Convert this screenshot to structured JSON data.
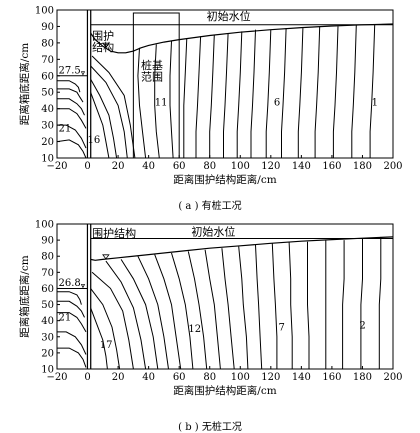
{
  "chart_data": [
    {
      "type": "line",
      "xlabel": "距离围护结构距离/cm",
      "ylabel": "距离箱底距离/cm",
      "xlim": [
        -20,
        200
      ],
      "ylim": [
        10,
        100
      ],
      "xticks": [
        "−20",
        "0",
        "20",
        "40",
        "60",
        "80",
        "100",
        "120",
        "140",
        "160",
        "180",
        "200"
      ],
      "yticks": [
        "10",
        "20",
        "30",
        "40",
        "50",
        "60",
        "70",
        "80",
        "90",
        "100"
      ],
      "grid": false,
      "caption": "( a ) 有桩工况",
      "annotations": {
        "initial_water_level": "初始水位",
        "retaining_structure": [
          "围护",
          "结构"
        ],
        "pile_zone": [
          "桩基",
          "范围"
        ],
        "inside_level": "27.5",
        "contour_21": "21",
        "contour_16": "16",
        "contour_11": "11",
        "contour_6": "6",
        "contour_1": "1"
      },
      "wall_x": [
        0,
        2
      ],
      "pile_zone_x": [
        30,
        60
      ],
      "initial_water_level_y": 91,
      "phreatic_line": {
        "x": [
          2,
          5,
          10,
          15,
          20,
          25,
          30,
          35,
          40,
          50,
          60,
          80,
          100,
          120,
          140,
          160,
          180,
          200
        ],
        "y": [
          86,
          82,
          78,
          75,
          74,
          74,
          75,
          77,
          78.5,
          80.5,
          82,
          84.5,
          86.5,
          88,
          89.3,
          90.3,
          91,
          91.5
        ]
      },
      "contours": [
        {
          "x": [
            -20,
            -12,
            -8,
            -6,
            -5
          ],
          "y": [
            57,
            57,
            55,
            53,
            50
          ]
        },
        {
          "x": [
            -20,
            -12,
            -7,
            -5,
            -3
          ],
          "y": [
            52,
            52,
            50,
            47,
            44
          ]
        },
        {
          "x": [
            -20,
            -12,
            -7,
            -4,
            -2
          ],
          "y": [
            46,
            46,
            43,
            40,
            36
          ]
        },
        {
          "x": [
            -20,
            -12,
            -7,
            -4,
            -1
          ],
          "y": [
            40,
            40,
            37,
            33,
            28
          ]
        },
        {
          "x": [
            -20,
            -14,
            -8,
            -4,
            -1
          ],
          "y": [
            30,
            30,
            27,
            22,
            16
          ]
        },
        {
          "x": [
            -20,
            -12,
            -6,
            -3,
            -1
          ],
          "y": [
            20,
            21,
            18,
            14,
            10
          ]
        },
        {
          "x": [
            2,
            6,
            10,
            12,
            14
          ],
          "y": [
            50,
            40,
            30,
            20,
            10
          ]
        },
        {
          "x": [
            2,
            8,
            14,
            17,
            19
          ],
          "y": [
            58,
            48,
            36,
            22,
            10
          ]
        },
        {
          "x": [
            2,
            12,
            20,
            24,
            26
          ],
          "y": [
            66,
            56,
            42,
            26,
            10
          ]
        },
        {
          "x": [
            3,
            14,
            24,
            28,
            31
          ],
          "y": [
            72,
            62,
            48,
            30,
            10
          ]
        },
        {
          "x": [
            34,
            33,
            34,
            36,
            38
          ],
          "y": [
            77,
            60,
            42,
            26,
            10
          ]
        },
        {
          "x": [
            45,
            44,
            44,
            45,
            47
          ],
          "y": [
            79,
            60,
            42,
            26,
            10
          ]
        },
        {
          "x": [
            55,
            54,
            54,
            55,
            56
          ],
          "y": [
            81,
            60,
            42,
            26,
            10
          ]
        },
        {
          "x": [
            65,
            64,
            63,
            63,
            63
          ],
          "y": [
            83,
            62,
            42,
            26,
            10
          ]
        },
        {
          "x": [
            74,
            73,
            72,
            71,
            71
          ],
          "y": [
            84,
            62,
            42,
            26,
            10
          ]
        },
        {
          "x": [
            83,
            82,
            81,
            80,
            80
          ],
          "y": [
            85,
            62,
            42,
            26,
            10
          ]
        },
        {
          "x": [
            92,
            91,
            90,
            89,
            89
          ],
          "y": [
            86,
            62,
            42,
            26,
            10
          ]
        },
        {
          "x": [
            101,
            100,
            99,
            98,
            98
          ],
          "y": [
            87,
            62,
            42,
            26,
            10
          ]
        },
        {
          "x": [
            110,
            109,
            108,
            107,
            107
          ],
          "y": [
            88,
            62,
            42,
            26,
            10
          ]
        },
        {
          "x": [
            120,
            119,
            118,
            117,
            117
          ],
          "y": [
            88,
            62,
            42,
            26,
            10
          ]
        },
        {
          "x": [
            130,
            129,
            128,
            127,
            127
          ],
          "y": [
            89,
            62,
            42,
            26,
            10
          ]
        },
        {
          "x": [
            141,
            140,
            139,
            138,
            138
          ],
          "y": [
            89,
            62,
            42,
            26,
            10
          ]
        },
        {
          "x": [
            152,
            151,
            150,
            149,
            149
          ],
          "y": [
            90,
            62,
            42,
            26,
            10
          ]
        },
        {
          "x": [
            164,
            163,
            162,
            161,
            161
          ],
          "y": [
            90,
            62,
            42,
            26,
            10
          ]
        },
        {
          "x": [
            176,
            175,
            174,
            173,
            173
          ],
          "y": [
            91,
            62,
            42,
            26,
            10
          ]
        },
        {
          "x": [
            188,
            187,
            186,
            185,
            185
          ],
          "y": [
            91,
            62,
            42,
            26,
            10
          ]
        }
      ]
    },
    {
      "type": "line",
      "xlabel": "距离围护结构距离/cm",
      "ylabel": "距离箱底距离/cm",
      "xlim": [
        -20,
        200
      ],
      "ylim": [
        10,
        100
      ],
      "xticks": [
        "−20",
        "0",
        "20",
        "40",
        "60",
        "80",
        "100",
        "120",
        "140",
        "160",
        "180",
        "200"
      ],
      "yticks": [
        "10",
        "20",
        "30",
        "40",
        "50",
        "60",
        "70",
        "80",
        "90",
        "100"
      ],
      "grid": false,
      "caption": "( b ) 无桩工况",
      "annotations": {
        "initial_water_level": "初始水位",
        "retaining_structure": "围护结构",
        "inside_level": "26.8",
        "contour_21": "21",
        "contour_17": "17",
        "contour_12": "12",
        "contour_7": "7",
        "contour_2": "2"
      },
      "wall_x": [
        0,
        2
      ],
      "initial_water_level_y": 91,
      "phreatic_line": {
        "x": [
          2,
          5,
          10,
          20,
          40,
          60,
          80,
          100,
          120,
          140,
          160,
          180,
          200
        ],
        "y": [
          78,
          77.5,
          78,
          79,
          81,
          83,
          85,
          86.5,
          88,
          89.3,
          90.3,
          91.2,
          92
        ]
      },
      "contours": [
        {
          "x": [
            -20,
            -12,
            -7,
            -5,
            -4
          ],
          "y": [
            58,
            58,
            56,
            53,
            50
          ]
        },
        {
          "x": [
            -20,
            -12,
            -7,
            -4,
            -2
          ],
          "y": [
            52,
            52,
            49,
            46,
            42
          ]
        },
        {
          "x": [
            -20,
            -12,
            -7,
            -4,
            -1
          ],
          "y": [
            45,
            45,
            42,
            38,
            33
          ]
        },
        {
          "x": [
            -20,
            -14,
            -8,
            -4,
            -1
          ],
          "y": [
            33,
            33,
            30,
            25,
            19
          ]
        },
        {
          "x": [
            -20,
            -12,
            -6,
            -3,
            -1
          ],
          "y": [
            23,
            23,
            20,
            16,
            11
          ]
        },
        {
          "x": [
            2,
            6,
            10,
            12,
            13
          ],
          "y": [
            48,
            38,
            28,
            18,
            10
          ]
        },
        {
          "x": [
            2,
            10,
            16,
            19,
            21
          ],
          "y": [
            60,
            50,
            36,
            22,
            10
          ]
        },
        {
          "x": [
            3,
            15,
            23,
            27,
            30
          ],
          "y": [
            70,
            60,
            46,
            28,
            10
          ]
        },
        {
          "x": [
            12,
            22,
            30,
            35,
            38
          ],
          "y": [
            77,
            64,
            48,
            28,
            10
          ]
        },
        {
          "x": [
            22,
            30,
            38,
            43,
            46
          ],
          "y": [
            78,
            66,
            50,
            30,
            10
          ]
        },
        {
          "x": [
            33,
            40,
            46,
            50,
            53
          ],
          "y": [
            80,
            66,
            50,
            30,
            10
          ]
        },
        {
          "x": [
            44,
            50,
            55,
            58,
            61
          ],
          "y": [
            81,
            66,
            50,
            30,
            10
          ]
        },
        {
          "x": [
            55,
            60,
            64,
            67,
            69
          ],
          "y": [
            82,
            66,
            50,
            30,
            10
          ]
        },
        {
          "x": [
            66,
            70,
            73,
            76,
            78
          ],
          "y": [
            83,
            66,
            50,
            30,
            10
          ]
        },
        {
          "x": [
            77,
            80,
            83,
            85,
            87
          ],
          "y": [
            84,
            66,
            50,
            30,
            10
          ]
        },
        {
          "x": [
            88,
            90,
            92,
            94,
            96
          ],
          "y": [
            85,
            66,
            50,
            30,
            10
          ]
        },
        {
          "x": [
            99,
            101,
            102,
            104,
            105
          ],
          "y": [
            86,
            66,
            50,
            30,
            10
          ]
        },
        {
          "x": [
            110,
            111,
            112,
            113,
            114
          ],
          "y": [
            87,
            66,
            50,
            30,
            10
          ]
        },
        {
          "x": [
            121,
            122,
            123,
            124,
            124
          ],
          "y": [
            88,
            66,
            50,
            30,
            10
          ]
        },
        {
          "x": [
            132,
            133,
            133,
            134,
            134
          ],
          "y": [
            89,
            66,
            50,
            30,
            10
          ]
        },
        {
          "x": [
            144,
            144,
            144,
            145,
            145
          ],
          "y": [
            89,
            66,
            50,
            30,
            10
          ]
        },
        {
          "x": [
            156,
            156,
            156,
            156,
            156
          ],
          "y": [
            90,
            66,
            50,
            30,
            10
          ]
        },
        {
          "x": [
            168,
            168,
            167,
            167,
            167
          ],
          "y": [
            90,
            66,
            50,
            30,
            10
          ]
        },
        {
          "x": [
            180,
            180,
            179,
            179,
            179
          ],
          "y": [
            91,
            66,
            50,
            30,
            10
          ]
        },
        {
          "x": [
            192,
            192,
            191,
            191,
            191
          ],
          "y": [
            92,
            66,
            50,
            30,
            10
          ]
        }
      ]
    }
  ]
}
